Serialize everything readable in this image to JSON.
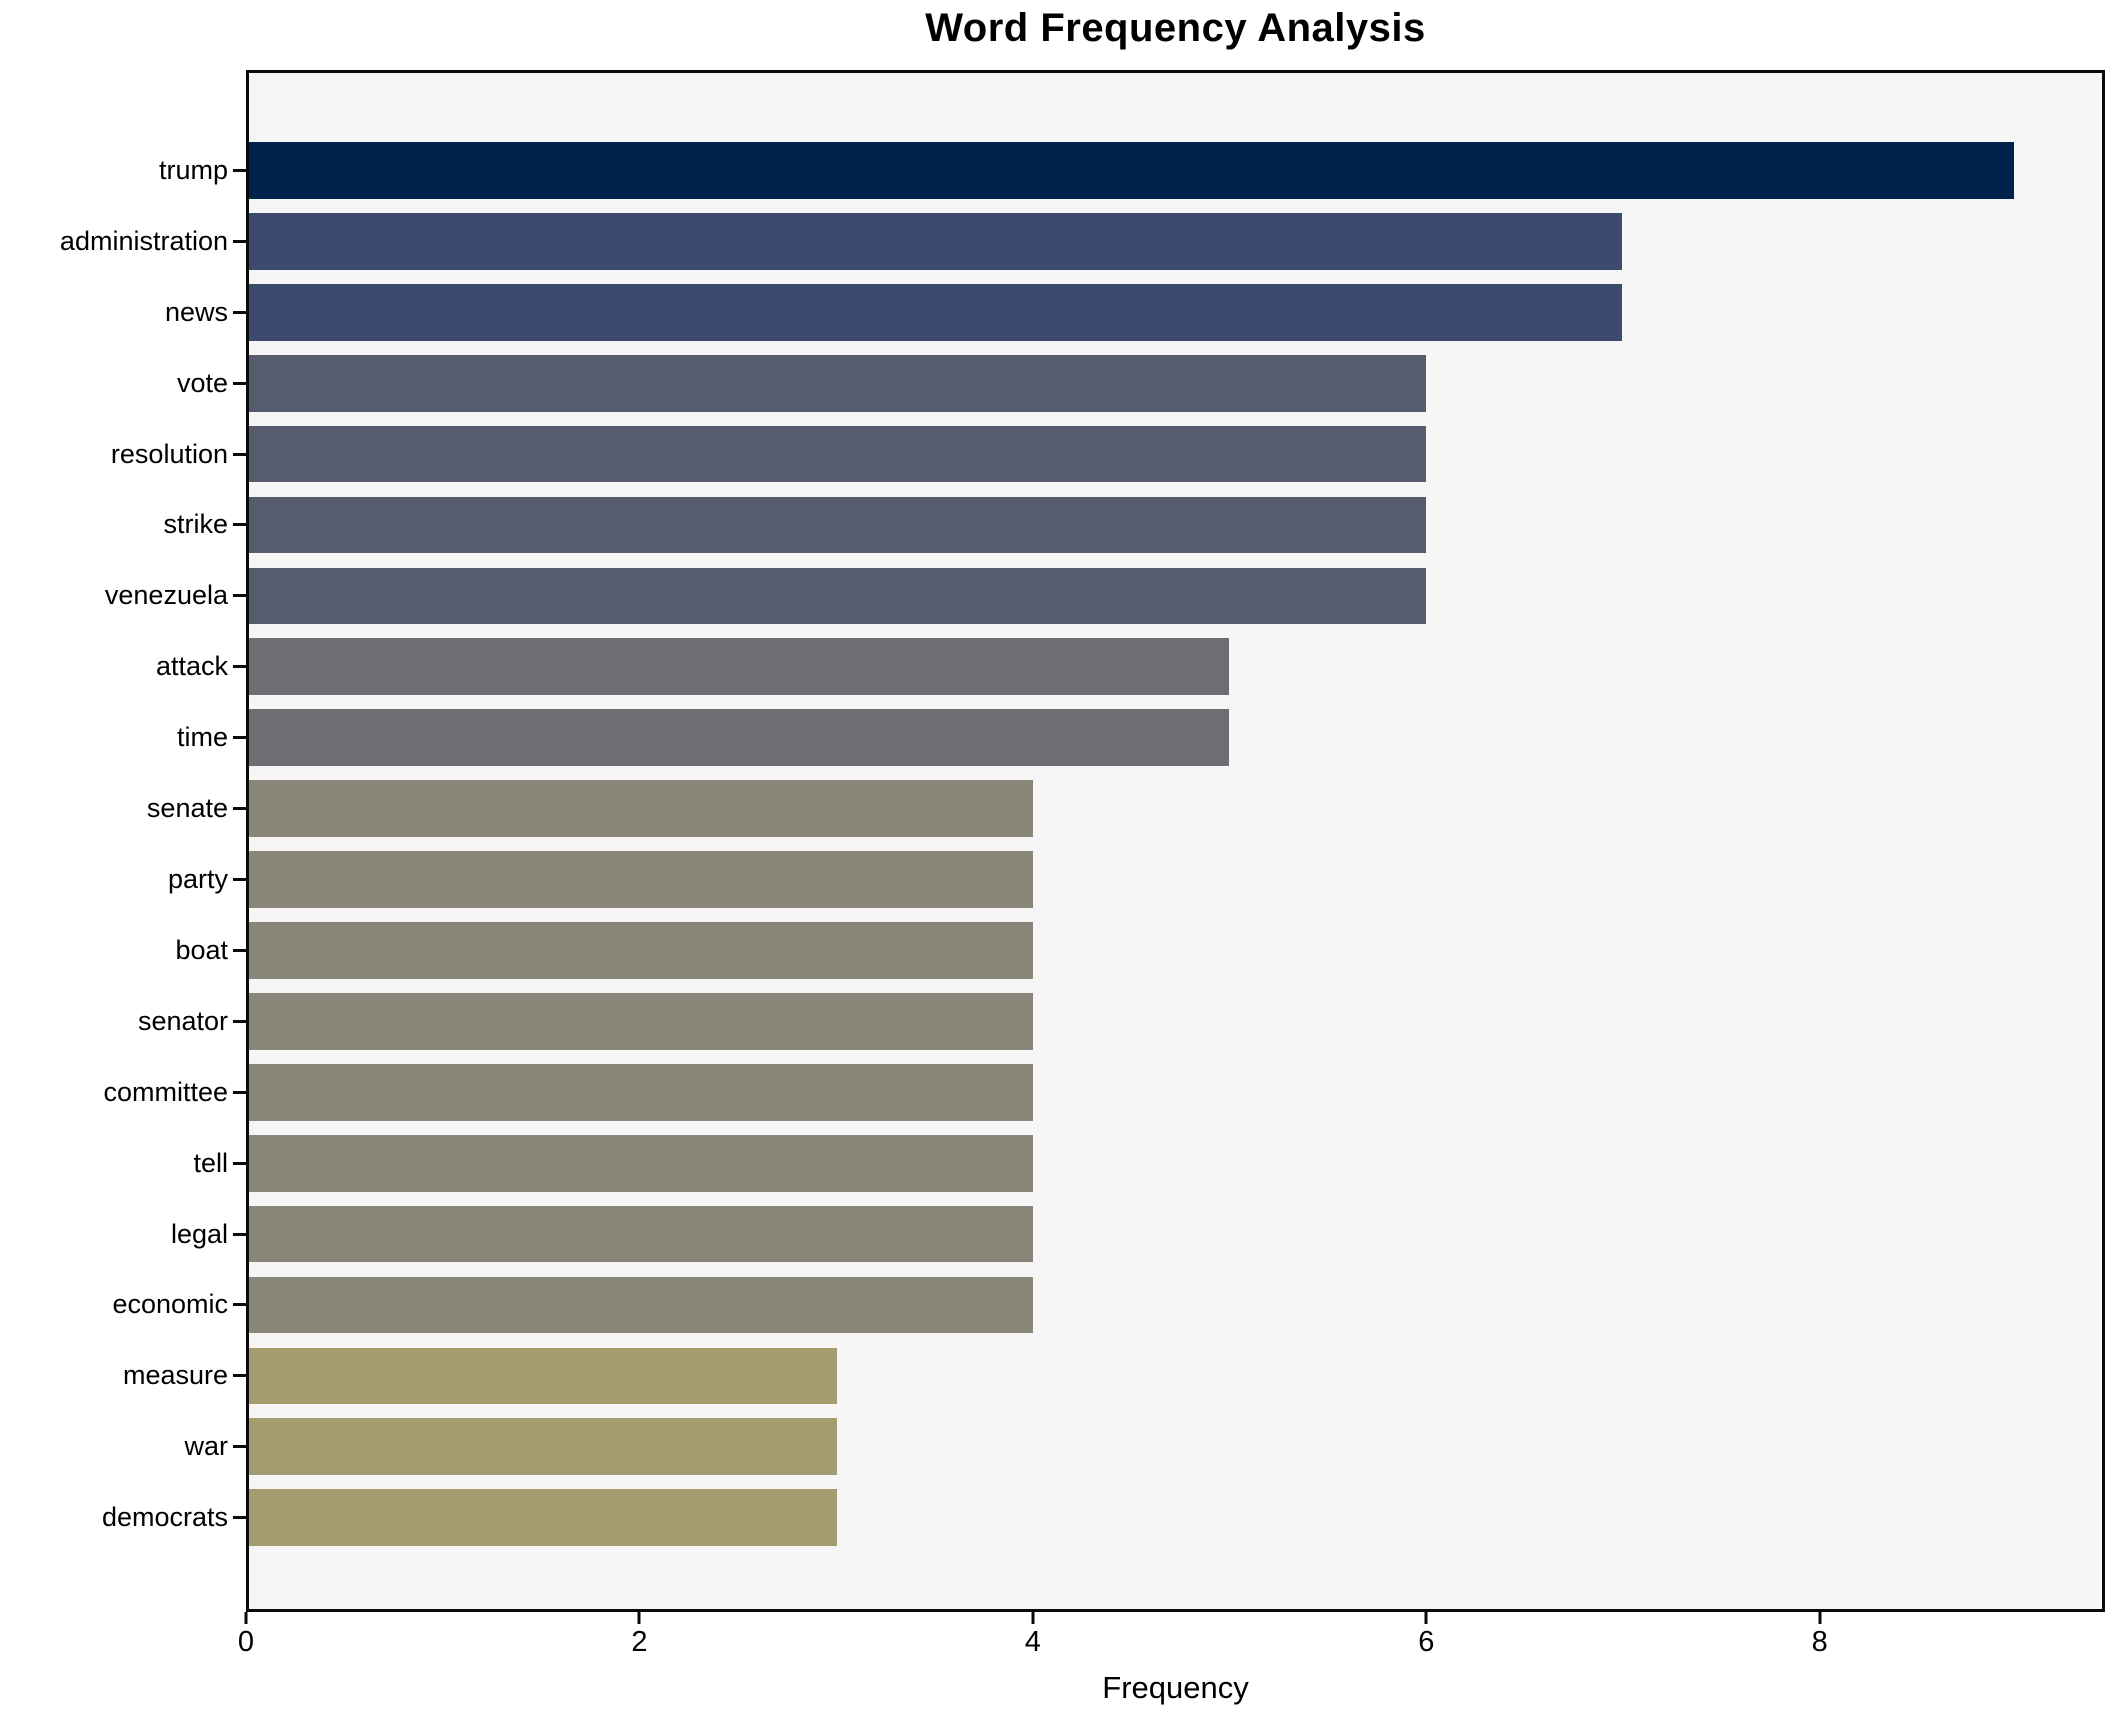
{
  "chart_data": {
    "type": "bar",
    "orientation": "horizontal",
    "title": "Word Frequency Analysis",
    "xlabel": "Frequency",
    "ylabel": "",
    "categories": [
      "trump",
      "administration",
      "news",
      "vote",
      "resolution",
      "strike",
      "venezuela",
      "attack",
      "time",
      "senate",
      "party",
      "boat",
      "senator",
      "committee",
      "tell",
      "legal",
      "economic",
      "measure",
      "war",
      "democrats"
    ],
    "values": [
      9,
      7,
      7,
      6,
      6,
      6,
      6,
      5,
      5,
      4,
      4,
      4,
      4,
      4,
      4,
      4,
      4,
      3,
      3,
      3
    ],
    "bar_colors": [
      "#00234e",
      "#3c4b6d",
      "#3c4b6d",
      "#565c6d",
      "#565c6d",
      "#565c6d",
      "#565c6d",
      "#6d6e71",
      "#6d6e71",
      "#898679",
      "#898679",
      "#898679",
      "#898679",
      "#898679",
      "#898679",
      "#898679",
      "#898679",
      "#a59c70",
      "#a59c70",
      "#a59c70"
    ],
    "xlim": [
      0,
      9.45
    ],
    "x_ticks": [
      0,
      2,
      4,
      6,
      8
    ],
    "grid": false,
    "legend": null,
    "plot_bg": "#f7f6f7",
    "fig_bg": "#ffffff",
    "spine_color": "#0a0a0a"
  }
}
